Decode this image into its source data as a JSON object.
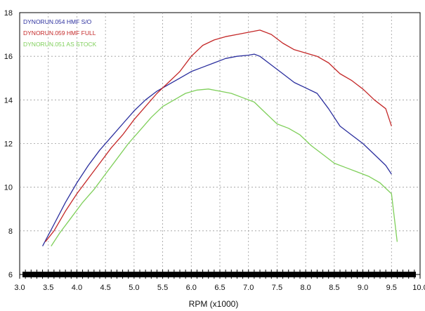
{
  "chart_data": {
    "type": "line",
    "title": "",
    "xlabel": "RPM (x1000)",
    "ylabel": "",
    "xlim": [
      3.0,
      10.0
    ],
    "ylim": [
      6,
      18
    ],
    "xticks": [
      3.0,
      3.5,
      4.0,
      4.5,
      5.0,
      5.5,
      6.0,
      6.5,
      7.0,
      7.5,
      8.0,
      8.5,
      9.0,
      9.5,
      10.0
    ],
    "yticks": [
      6,
      8,
      10,
      12,
      14,
      16,
      18
    ],
    "xtick_labels": [
      "3.0",
      "3.5",
      "4.0",
      "4.5",
      "5.0",
      "5.5",
      "6.0",
      "6.5",
      "7.0",
      "7.5",
      "8.0",
      "8.5",
      "9.0",
      "9.5",
      "10.0"
    ],
    "ytick_labels": [
      "6",
      "8",
      "10",
      "12",
      "14",
      "16",
      "18"
    ],
    "grid": true,
    "legend_position": "top-left",
    "series": [
      {
        "name": "DYNORUN.054  HMF S/O",
        "color": "#2b2f9e",
        "points": [
          [
            3.4,
            7.3
          ],
          [
            3.6,
            8.3
          ],
          [
            3.8,
            9.3
          ],
          [
            4.0,
            10.2
          ],
          [
            4.2,
            11.0
          ],
          [
            4.4,
            11.7
          ],
          [
            4.6,
            12.3
          ],
          [
            4.8,
            12.9
          ],
          [
            5.0,
            13.5
          ],
          [
            5.2,
            14.0
          ],
          [
            5.4,
            14.4
          ],
          [
            5.6,
            14.7
          ],
          [
            5.8,
            15.0
          ],
          [
            6.0,
            15.3
          ],
          [
            6.2,
            15.5
          ],
          [
            6.4,
            15.7
          ],
          [
            6.6,
            15.9
          ],
          [
            6.8,
            16.0
          ],
          [
            7.0,
            16.05
          ],
          [
            7.1,
            16.1
          ],
          [
            7.2,
            16.0
          ],
          [
            7.4,
            15.6
          ],
          [
            7.6,
            15.2
          ],
          [
            7.8,
            14.8
          ],
          [
            8.0,
            14.55
          ],
          [
            8.2,
            14.3
          ],
          [
            8.4,
            13.6
          ],
          [
            8.6,
            12.8
          ],
          [
            8.8,
            12.4
          ],
          [
            9.0,
            12.0
          ],
          [
            9.2,
            11.5
          ],
          [
            9.4,
            11.0
          ],
          [
            9.5,
            10.6
          ]
        ]
      },
      {
        "name": "DYNORUN.059  HMF FULL",
        "color": "#c42828",
        "points": [
          [
            3.45,
            7.5
          ],
          [
            3.6,
            8.0
          ],
          [
            3.8,
            8.9
          ],
          [
            4.0,
            9.7
          ],
          [
            4.2,
            10.4
          ],
          [
            4.4,
            11.1
          ],
          [
            4.6,
            11.8
          ],
          [
            4.8,
            12.4
          ],
          [
            5.0,
            13.1
          ],
          [
            5.2,
            13.7
          ],
          [
            5.4,
            14.3
          ],
          [
            5.6,
            14.8
          ],
          [
            5.8,
            15.3
          ],
          [
            6.0,
            16.0
          ],
          [
            6.2,
            16.5
          ],
          [
            6.4,
            16.75
          ],
          [
            6.6,
            16.9
          ],
          [
            6.8,
            17.0
          ],
          [
            7.0,
            17.1
          ],
          [
            7.2,
            17.2
          ],
          [
            7.4,
            17.0
          ],
          [
            7.6,
            16.6
          ],
          [
            7.8,
            16.3
          ],
          [
            8.0,
            16.15
          ],
          [
            8.2,
            16.0
          ],
          [
            8.4,
            15.7
          ],
          [
            8.6,
            15.2
          ],
          [
            8.8,
            14.9
          ],
          [
            9.0,
            14.5
          ],
          [
            9.2,
            14.0
          ],
          [
            9.4,
            13.6
          ],
          [
            9.5,
            12.8
          ]
        ]
      },
      {
        "name": "DYNORUN.051  AS STOCK",
        "color": "#7fcf5a",
        "points": [
          [
            3.55,
            7.3
          ],
          [
            3.7,
            7.9
          ],
          [
            3.9,
            8.6
          ],
          [
            4.1,
            9.3
          ],
          [
            4.3,
            9.9
          ],
          [
            4.5,
            10.6
          ],
          [
            4.7,
            11.3
          ],
          [
            4.9,
            12.0
          ],
          [
            5.1,
            12.6
          ],
          [
            5.3,
            13.2
          ],
          [
            5.5,
            13.7
          ],
          [
            5.7,
            14.0
          ],
          [
            5.9,
            14.3
          ],
          [
            6.1,
            14.45
          ],
          [
            6.3,
            14.5
          ],
          [
            6.5,
            14.4
          ],
          [
            6.7,
            14.3
          ],
          [
            6.9,
            14.1
          ],
          [
            7.1,
            13.9
          ],
          [
            7.3,
            13.4
          ],
          [
            7.5,
            12.9
          ],
          [
            7.7,
            12.7
          ],
          [
            7.9,
            12.4
          ],
          [
            8.1,
            11.9
          ],
          [
            8.3,
            11.5
          ],
          [
            8.5,
            11.1
          ],
          [
            8.7,
            10.9
          ],
          [
            8.9,
            10.7
          ],
          [
            9.1,
            10.5
          ],
          [
            9.3,
            10.2
          ],
          [
            9.5,
            9.7
          ],
          [
            9.6,
            7.5
          ]
        ]
      }
    ]
  }
}
